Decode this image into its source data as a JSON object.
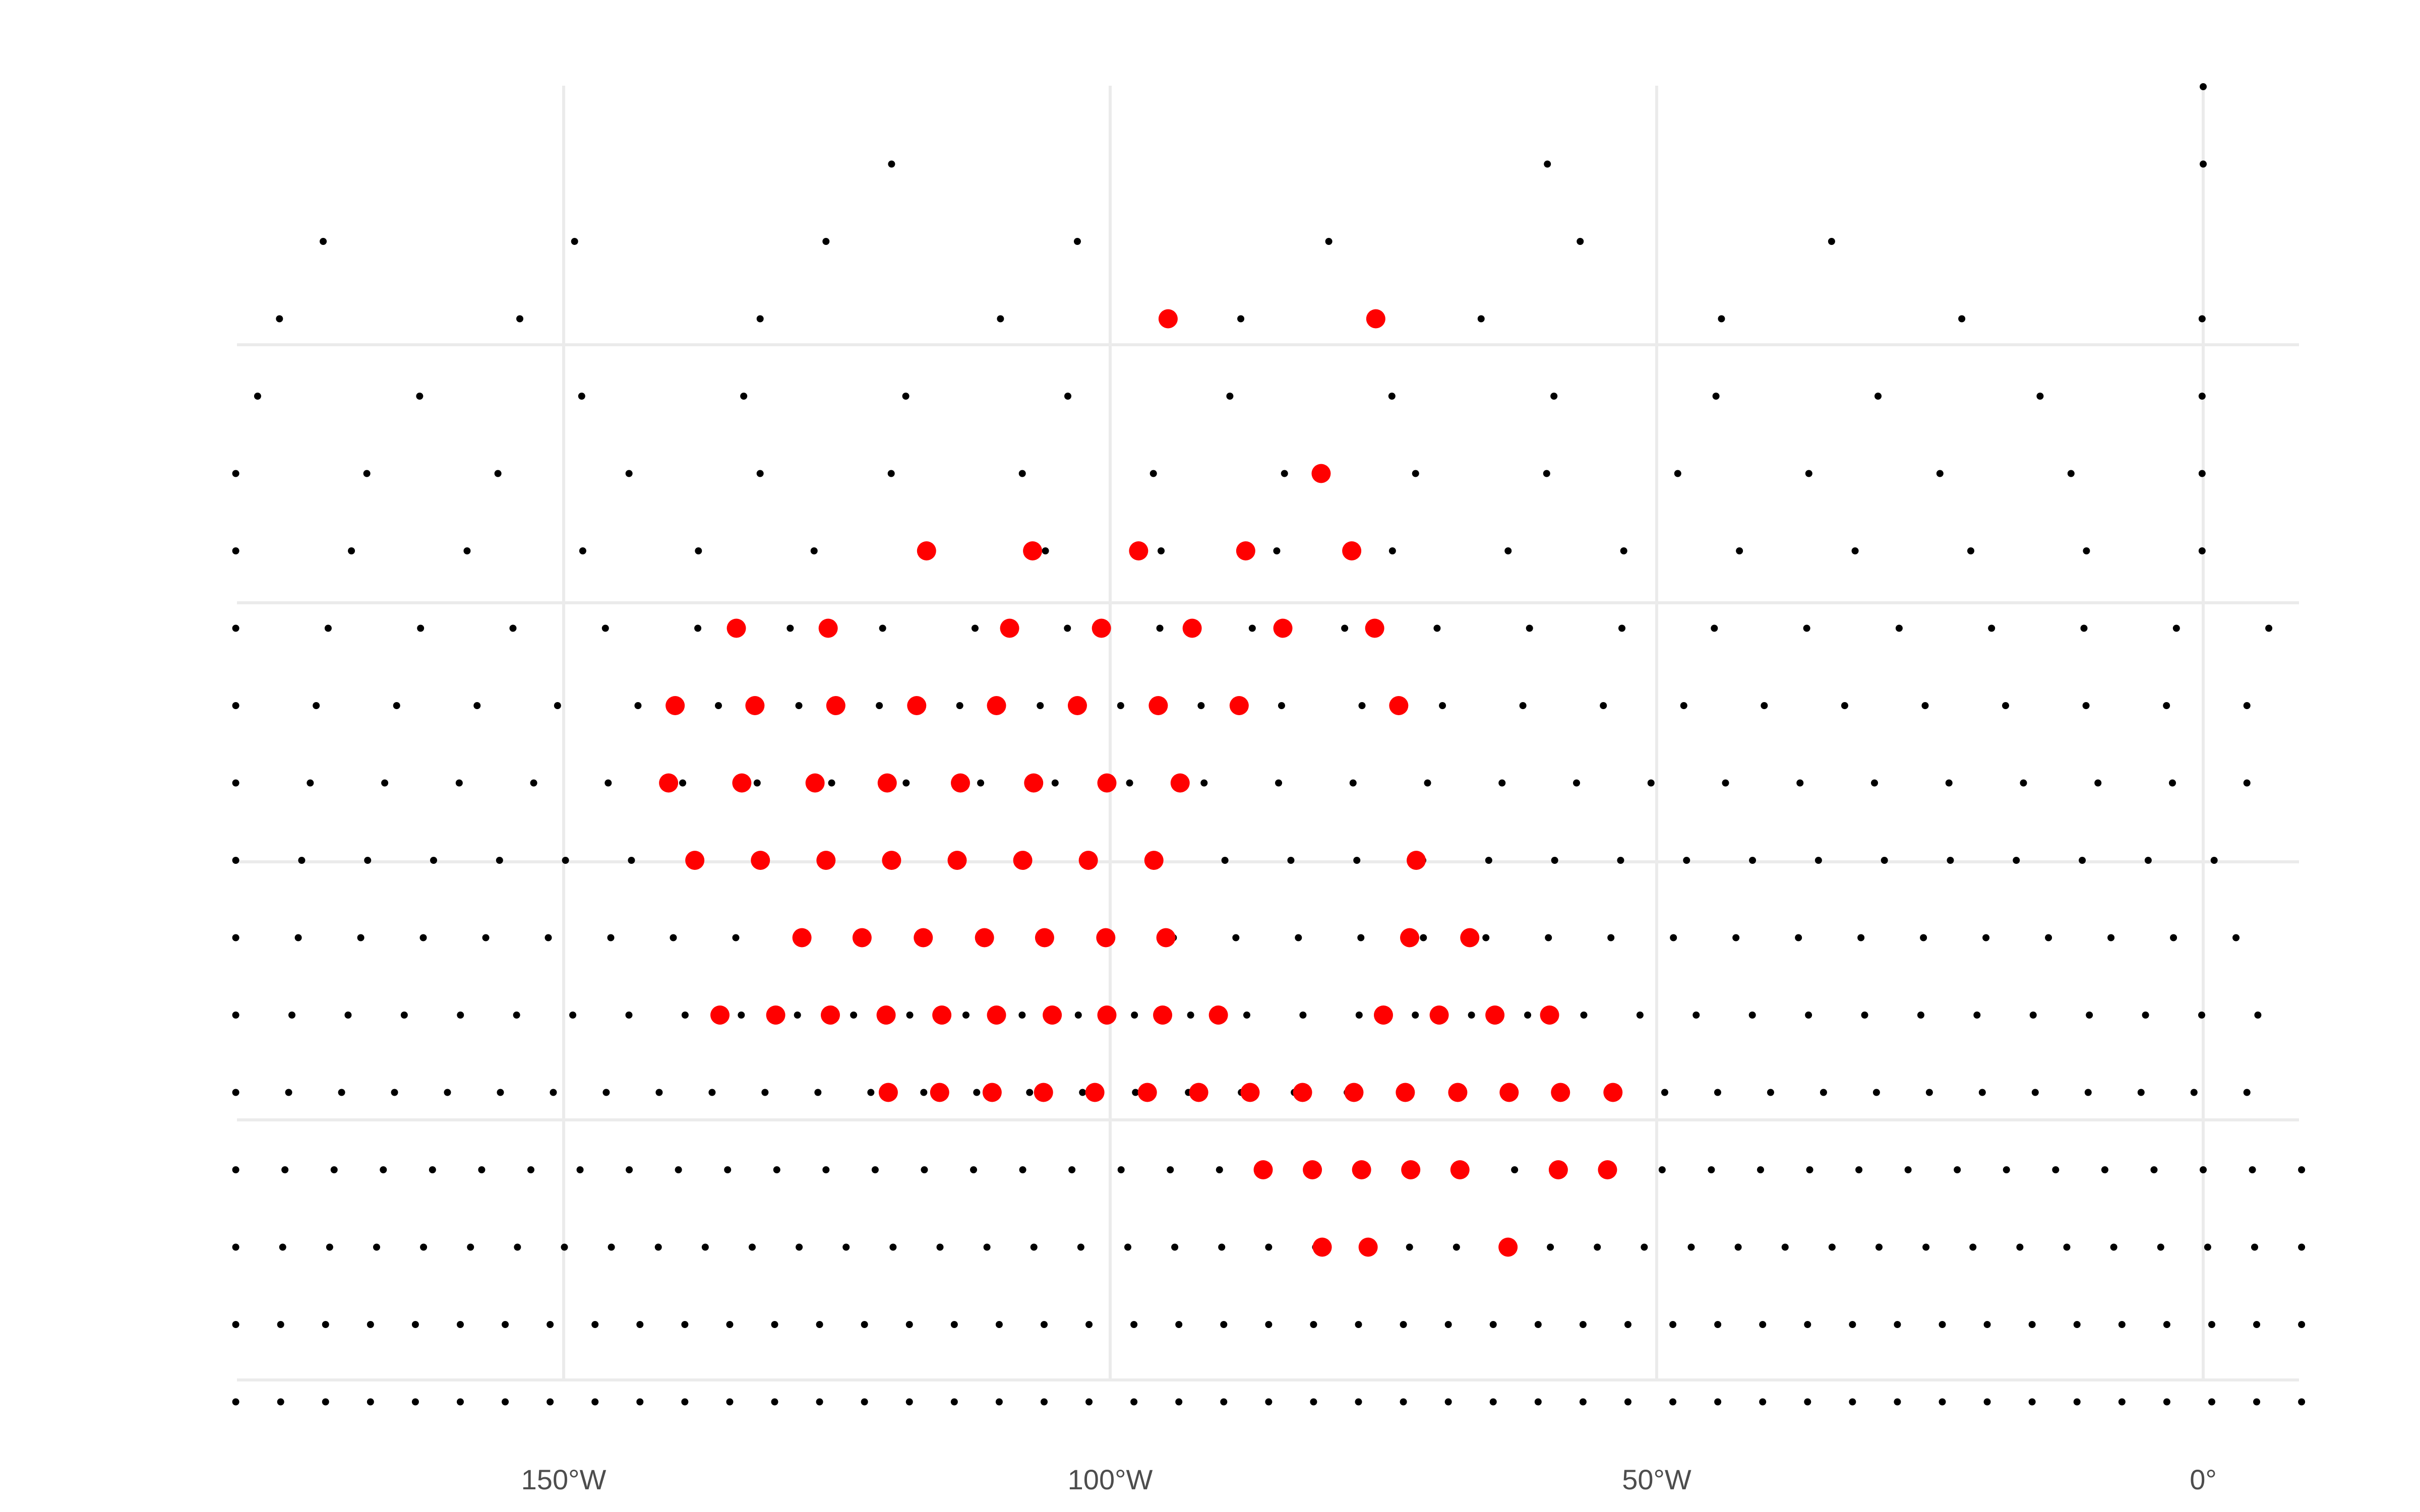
{
  "map": {
    "x_axis_ticks": [
      {
        "lon": -150,
        "label": "150°W"
      },
      {
        "lon": -100,
        "label": "100°W"
      },
      {
        "lon": -50,
        "label": "50°W"
      },
      {
        "lon": 0,
        "label": "0°"
      }
    ],
    "colors": {
      "background": "#ffffff",
      "gridline": "#ebebeb",
      "tick_label": "#4d4d4d",
      "point_default": "#000000",
      "point_highlight": "#ff0000"
    },
    "projection": "polar-like grid; meridians straight, parallels horizontal",
    "point_grid": {
      "description": "Regular grid of sample points; black small dots, red large dots mark highlighted region",
      "rows": [
        {
          "n": 1,
          "lon_step": 0,
          "highlight_lons": []
        },
        {
          "n": 2,
          "highlight_lons": []
        },
        {
          "n": 7,
          "highlight_lons": []
        },
        {
          "n": 9,
          "highlight_lons": [
            -94.7,
            -75.7
          ]
        },
        {
          "n": 13,
          "highlight_lons": []
        },
        {
          "n": 16,
          "highlight_lons": [
            -80.7
          ]
        },
        {
          "n": 18,
          "highlight_lons": [
            -116.8,
            -107.1,
            -97.4,
            -87.6,
            -77.9
          ]
        },
        {
          "n": 23,
          "highlight_lons": [
            -134.2,
            -125.8,
            -109.2,
            -100.8,
            -92.5,
            -84.2,
            -75.8
          ]
        },
        {
          "n": 26,
          "highlight_lons": [
            -139.8,
            -132.5,
            -125.1,
            -117.7,
            -110.4,
            -103.0,
            -95.6,
            -88.2,
            -73.6
          ]
        },
        {
          "n": 28,
          "highlight_lons": [
            -140.4,
            -133.7,
            -127.0,
            -120.4,
            -113.7,
            -107.0,
            -100.3,
            -93.6
          ]
        },
        {
          "n": 31,
          "highlight_lons": [
            -138.0,
            -132.0,
            -126.0,
            -120.0,
            -114.0,
            -108.0,
            -102.0,
            -96.0,
            -72.0
          ]
        },
        {
          "n": 33,
          "highlight_lons": [
            -128.2,
            -122.7,
            -117.1,
            -111.5,
            -106.0,
            -100.4,
            -94.9,
            -72.6,
            -67.1
          ]
        },
        {
          "n": 37,
          "highlight_lons": [
            -135.7,
            -130.6,
            -125.6,
            -120.5,
            -115.4,
            -110.4,
            -105.3,
            -100.3,
            -95.2,
            -90.1,
            -75.0,
            -69.9,
            -64.8,
            -59.8
          ]
        },
        {
          "n": 39,
          "highlight_lons": [
            -120.3,
            -115.6,
            -110.8,
            -106.1,
            -101.4,
            -96.6,
            -91.9,
            -87.2,
            -82.4,
            -77.7,
            -73.0,
            -68.2,
            -63.5,
            -58.8,
            -54.0
          ]
        },
        {
          "n": 43,
          "highlight_lons": [
            -86.0,
            -81.5,
            -77.0,
            -72.5,
            -68.0,
            -59.0,
            -54.5
          ]
        },
        {
          "n": 45,
          "highlight_lons": [
            -80.6,
            -76.4,
            -63.6
          ]
        },
        {
          "n": 47,
          "highlight_lons": []
        },
        {
          "n": 47,
          "highlight_lons": []
        }
      ]
    }
  }
}
